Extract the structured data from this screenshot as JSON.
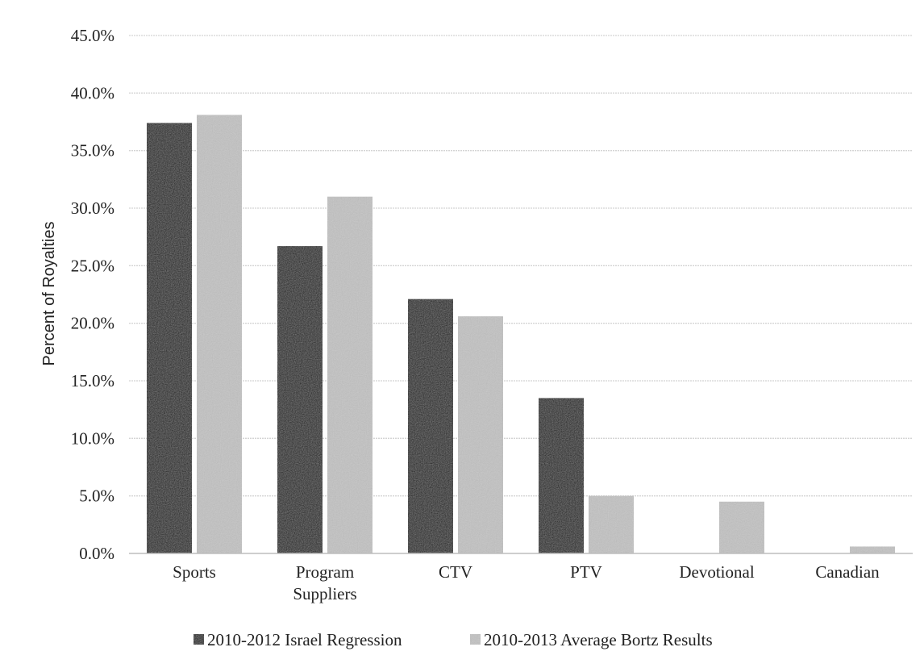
{
  "chart_data": {
    "type": "bar",
    "title": "",
    "xlabel": "",
    "ylabel": "Percent of Royalties",
    "ylim": [
      0,
      45
    ],
    "yticks": [
      "0.0%",
      "5.0%",
      "10.0%",
      "15.0%",
      "20.0%",
      "25.0%",
      "30.0%",
      "35.0%",
      "40.0%",
      "45.0%"
    ],
    "grid": true,
    "legend_position": "bottom",
    "categories": [
      [
        "Sports"
      ],
      [
        "Program",
        "Suppliers"
      ],
      [
        "CTV"
      ],
      [
        "PTV"
      ],
      [
        "Devotional"
      ],
      [
        "Canadian"
      ]
    ],
    "series": [
      {
        "name": "2010-2012 Israel Regression",
        "color": "#0a0a0a",
        "values": [
          37.4,
          26.7,
          22.1,
          13.5,
          null,
          null
        ]
      },
      {
        "name": "2010-2013 Average Bortz Results",
        "color": "#c2c2c2",
        "values": [
          38.1,
          31.0,
          20.6,
          5.0,
          4.5,
          0.6
        ]
      }
    ]
  }
}
